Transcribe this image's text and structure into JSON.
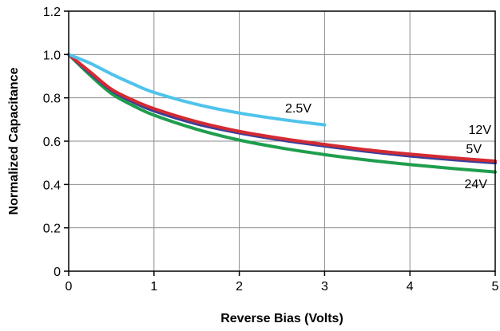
{
  "chart_data": {
    "type": "line",
    "title": "",
    "xlabel": "Reverse Bias (Volts)",
    "ylabel": "Normalized Capacitance",
    "xlim": [
      0,
      5
    ],
    "ylim": [
      0,
      1.2
    ],
    "x_ticks": [
      0,
      1,
      2,
      3,
      4,
      5
    ],
    "y_ticks": [
      0,
      0.2,
      0.4,
      0.6,
      0.8,
      1.0,
      1.2
    ],
    "x_tick_labels": [
      "0",
      "1",
      "2",
      "3",
      "4",
      "5"
    ],
    "y_tick_labels": [
      "0",
      "0.2",
      "0.4",
      "0.6",
      "0.8",
      "1.0",
      "1.2"
    ],
    "grid": true,
    "legend": "inline labels",
    "series": [
      {
        "name": "2.5V",
        "color": "#4ec3ec",
        "x": [
          0,
          0.25,
          0.5,
          0.75,
          1.0,
          1.5,
          2.0,
          2.5,
          3.0
        ],
        "y": [
          1.0,
          0.96,
          0.91,
          0.865,
          0.825,
          0.77,
          0.73,
          0.7,
          0.675
        ]
      },
      {
        "name": "12V",
        "color": "#d42a32",
        "x": [
          0,
          0.25,
          0.5,
          0.75,
          1.0,
          1.5,
          2.0,
          2.5,
          3.0,
          3.5,
          4.0,
          4.5,
          5.0
        ],
        "y": [
          1.0,
          0.92,
          0.84,
          0.79,
          0.75,
          0.69,
          0.645,
          0.612,
          0.585,
          0.56,
          0.54,
          0.523,
          0.508
        ]
      },
      {
        "name": "5V",
        "color": "#3a3f99",
        "x": [
          0,
          0.25,
          0.5,
          0.75,
          1.0,
          1.5,
          2.0,
          2.5,
          3.0,
          3.5,
          4.0,
          4.5,
          5.0
        ],
        "y": [
          1.0,
          0.915,
          0.835,
          0.782,
          0.74,
          0.68,
          0.638,
          0.605,
          0.578,
          0.553,
          0.532,
          0.515,
          0.5
        ]
      },
      {
        "name": "24V",
        "color": "#1f9e4e",
        "x": [
          0,
          0.25,
          0.5,
          0.75,
          1.0,
          1.5,
          2.0,
          2.5,
          3.0,
          3.5,
          4.0,
          4.5,
          5.0
        ],
        "y": [
          1.0,
          0.905,
          0.82,
          0.765,
          0.72,
          0.655,
          0.605,
          0.568,
          0.538,
          0.513,
          0.492,
          0.474,
          0.458
        ]
      }
    ]
  }
}
